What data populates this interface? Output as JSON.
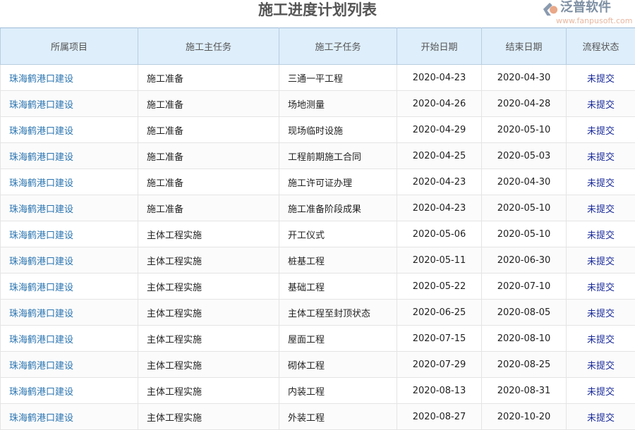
{
  "title": "施工进度计划列表",
  "columns": [
    "所属项目",
    "施工主任务",
    "施工子任务",
    "开始日期",
    "结束日期",
    "流程状态"
  ],
  "rows": [
    [
      "珠海鹤港口建设",
      "施工准备",
      "三通一平工程",
      "2020-04-23",
      "2020-04-30",
      "未提交"
    ],
    [
      "珠海鹤港口建设",
      "施工准备",
      "场地测量",
      "2020-04-26",
      "2020-04-28",
      "未提交"
    ],
    [
      "珠海鹤港口建设",
      "施工准备",
      "现场临时设施",
      "2020-04-29",
      "2020-05-10",
      "未提交"
    ],
    [
      "珠海鹤港口建设",
      "施工准备",
      "工程前期施工合同",
      "2020-04-25",
      "2020-05-03",
      "未提交"
    ],
    [
      "珠海鹤港口建设",
      "施工准备",
      "施工许可证办理",
      "2020-04-23",
      "2020-04-30",
      "未提交"
    ],
    [
      "珠海鹤港口建设",
      "施工准备",
      "施工准备阶段成果",
      "2020-04-23",
      "2020-05-10",
      "未提交"
    ],
    [
      "珠海鹤港口建设",
      "主体工程实施",
      "开工仪式",
      "2020-05-06",
      "2020-05-10",
      "未提交"
    ],
    [
      "珠海鹤港口建设",
      "主体工程实施",
      "桩基工程",
      "2020-05-11",
      "2020-06-30",
      "未提交"
    ],
    [
      "珠海鹤港口建设",
      "主体工程实施",
      "基础工程",
      "2020-05-22",
      "2020-07-10",
      "未提交"
    ],
    [
      "珠海鹤港口建设",
      "主体工程实施",
      "主体工程至封顶状态",
      "2020-06-25",
      "2020-08-05",
      "未提交"
    ],
    [
      "珠海鹤港口建设",
      "主体工程实施",
      "屋面工程",
      "2020-07-15",
      "2020-08-10",
      "未提交"
    ],
    [
      "珠海鹤港口建设",
      "主体工程实施",
      "砌体工程",
      "2020-07-29",
      "2020-08-25",
      "未提交"
    ],
    [
      "珠海鹤港口建设",
      "主体工程实施",
      "内装工程",
      "2020-08-13",
      "2020-08-31",
      "未提交"
    ],
    [
      "珠海鹤港口建设",
      "主体工程实施",
      "外装工程",
      "2020-08-27",
      "2020-10-20",
      "未提交"
    ]
  ],
  "watermark": {
    "name": "泛普软件",
    "url": "www.fanpusoft.com"
  }
}
